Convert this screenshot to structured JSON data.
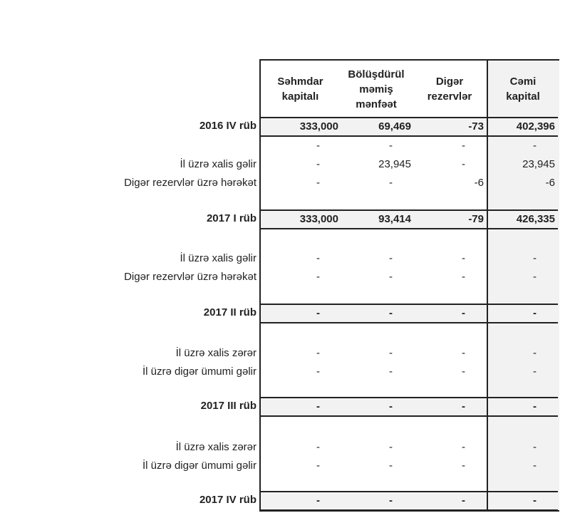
{
  "columns": [
    "Səhmdar kapitalı",
    "Bölüşdürül məmiş mənfəət",
    "Digər rezervlər",
    "Cəmi kapital"
  ],
  "sections": [
    {
      "title": "2016 IV rüb",
      "totals": [
        "333,000",
        "69,469",
        "-73",
        "402,396"
      ],
      "rows": [
        {
          "label": "",
          "values": [
            "-",
            "-",
            "-",
            "-"
          ]
        },
        {
          "label": "İl üzrə xalis gəlir",
          "values": [
            "-",
            "23,945",
            "-",
            "23,945"
          ]
        },
        {
          "label": "Digər rezervlər üzrə hərəkət",
          "values": [
            "-",
            "-",
            "-6",
            "-6"
          ]
        }
      ]
    },
    {
      "title": "2017 I rüb",
      "totals": [
        "333,000",
        "93,414",
        "-79",
        "426,335"
      ],
      "rows": [
        {
          "label": "İl üzrə xalis gəlir",
          "values": [
            "-",
            "-",
            "-",
            "-"
          ]
        },
        {
          "label": "Digər rezervlər üzrə hərəkət",
          "values": [
            "-",
            "-",
            "-",
            "-"
          ]
        }
      ]
    },
    {
      "title": "2017 II rüb",
      "totals": [
        "-",
        "-",
        "-",
        "-"
      ],
      "rows": [
        {
          "label": "İl üzrə xalis zərər",
          "values": [
            "-",
            "-",
            "-",
            "-"
          ]
        },
        {
          "label": "İl üzrə digər ümumi gəlir",
          "values": [
            "-",
            "-",
            "-",
            "-"
          ]
        }
      ]
    },
    {
      "title": "2017 III rüb",
      "totals": [
        "-",
        "-",
        "-",
        "-"
      ],
      "rows": [
        {
          "label": "İl üzrə xalis zərər",
          "values": [
            "-",
            "-",
            "-",
            "-"
          ]
        },
        {
          "label": "İl üzrə digər ümumi gəlir",
          "values": [
            "-",
            "-",
            "-",
            "-"
          ]
        }
      ]
    },
    {
      "title": "2017 IV rüb",
      "totals": [
        "-",
        "-",
        "-",
        "-"
      ],
      "rows": []
    }
  ]
}
